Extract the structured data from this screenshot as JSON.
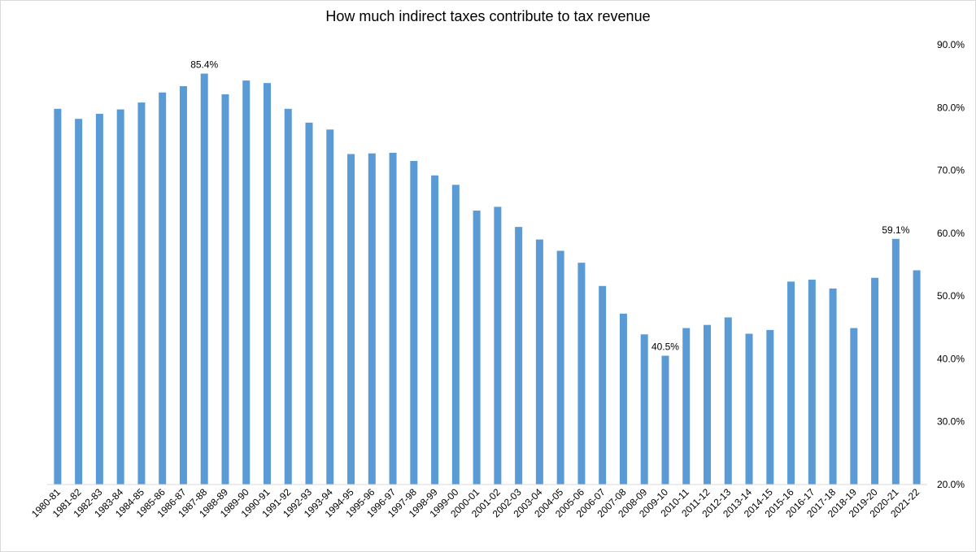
{
  "chart_data": {
    "type": "bar",
    "title": "How much indirect taxes contribute to tax revenue",
    "xlabel": "",
    "ylabel": "",
    "ylim": [
      20,
      90
    ],
    "y_ticks": [
      "20.0%",
      "30.0%",
      "40.0%",
      "50.0%",
      "60.0%",
      "70.0%",
      "80.0%",
      "90.0%"
    ],
    "y_axis_position": "right",
    "grid": false,
    "legend": "none",
    "bar_color": "#5b9bd5",
    "categories": [
      "1980-81",
      "1981-82",
      "1982-83",
      "1983-84",
      "1984-85",
      "1985-86",
      "1986-87",
      "1987-88",
      "1988-89",
      "1989-90",
      "1990-91",
      "1991-92",
      "1992-93",
      "1993-94",
      "1994-95",
      "1995-96",
      "1996-97",
      "1997-98",
      "1998-99",
      "1999-00",
      "2000-01",
      "2001-02",
      "2002-03",
      "2003-04",
      "2004-05",
      "2005-06",
      "2006-07",
      "2007-08",
      "2008-09",
      "2009-10",
      "2010-11",
      "2011-12",
      "2012-13",
      "2013-14",
      "2014-15",
      "2015-16",
      "2016-17",
      "2017-18",
      "2018-19",
      "2019-20",
      "2020-21",
      "2021-22"
    ],
    "values": [
      79.8,
      78.2,
      79.0,
      79.7,
      80.8,
      82.4,
      83.4,
      85.4,
      82.1,
      84.3,
      83.9,
      79.8,
      77.6,
      76.5,
      72.6,
      72.7,
      72.8,
      71.5,
      69.2,
      67.7,
      63.6,
      64.2,
      61.0,
      59.0,
      57.2,
      55.3,
      51.6,
      47.2,
      43.9,
      40.5,
      44.9,
      45.4,
      46.6,
      44.0,
      44.6,
      52.3,
      52.6,
      51.2,
      44.9,
      52.9,
      59.1,
      54.1
    ],
    "data_labels": [
      {
        "category": "1987-88",
        "text": "85.4%"
      },
      {
        "category": "2009-10",
        "text": "40.5%"
      },
      {
        "category": "2020-21",
        "text": "59.1%"
      }
    ]
  }
}
